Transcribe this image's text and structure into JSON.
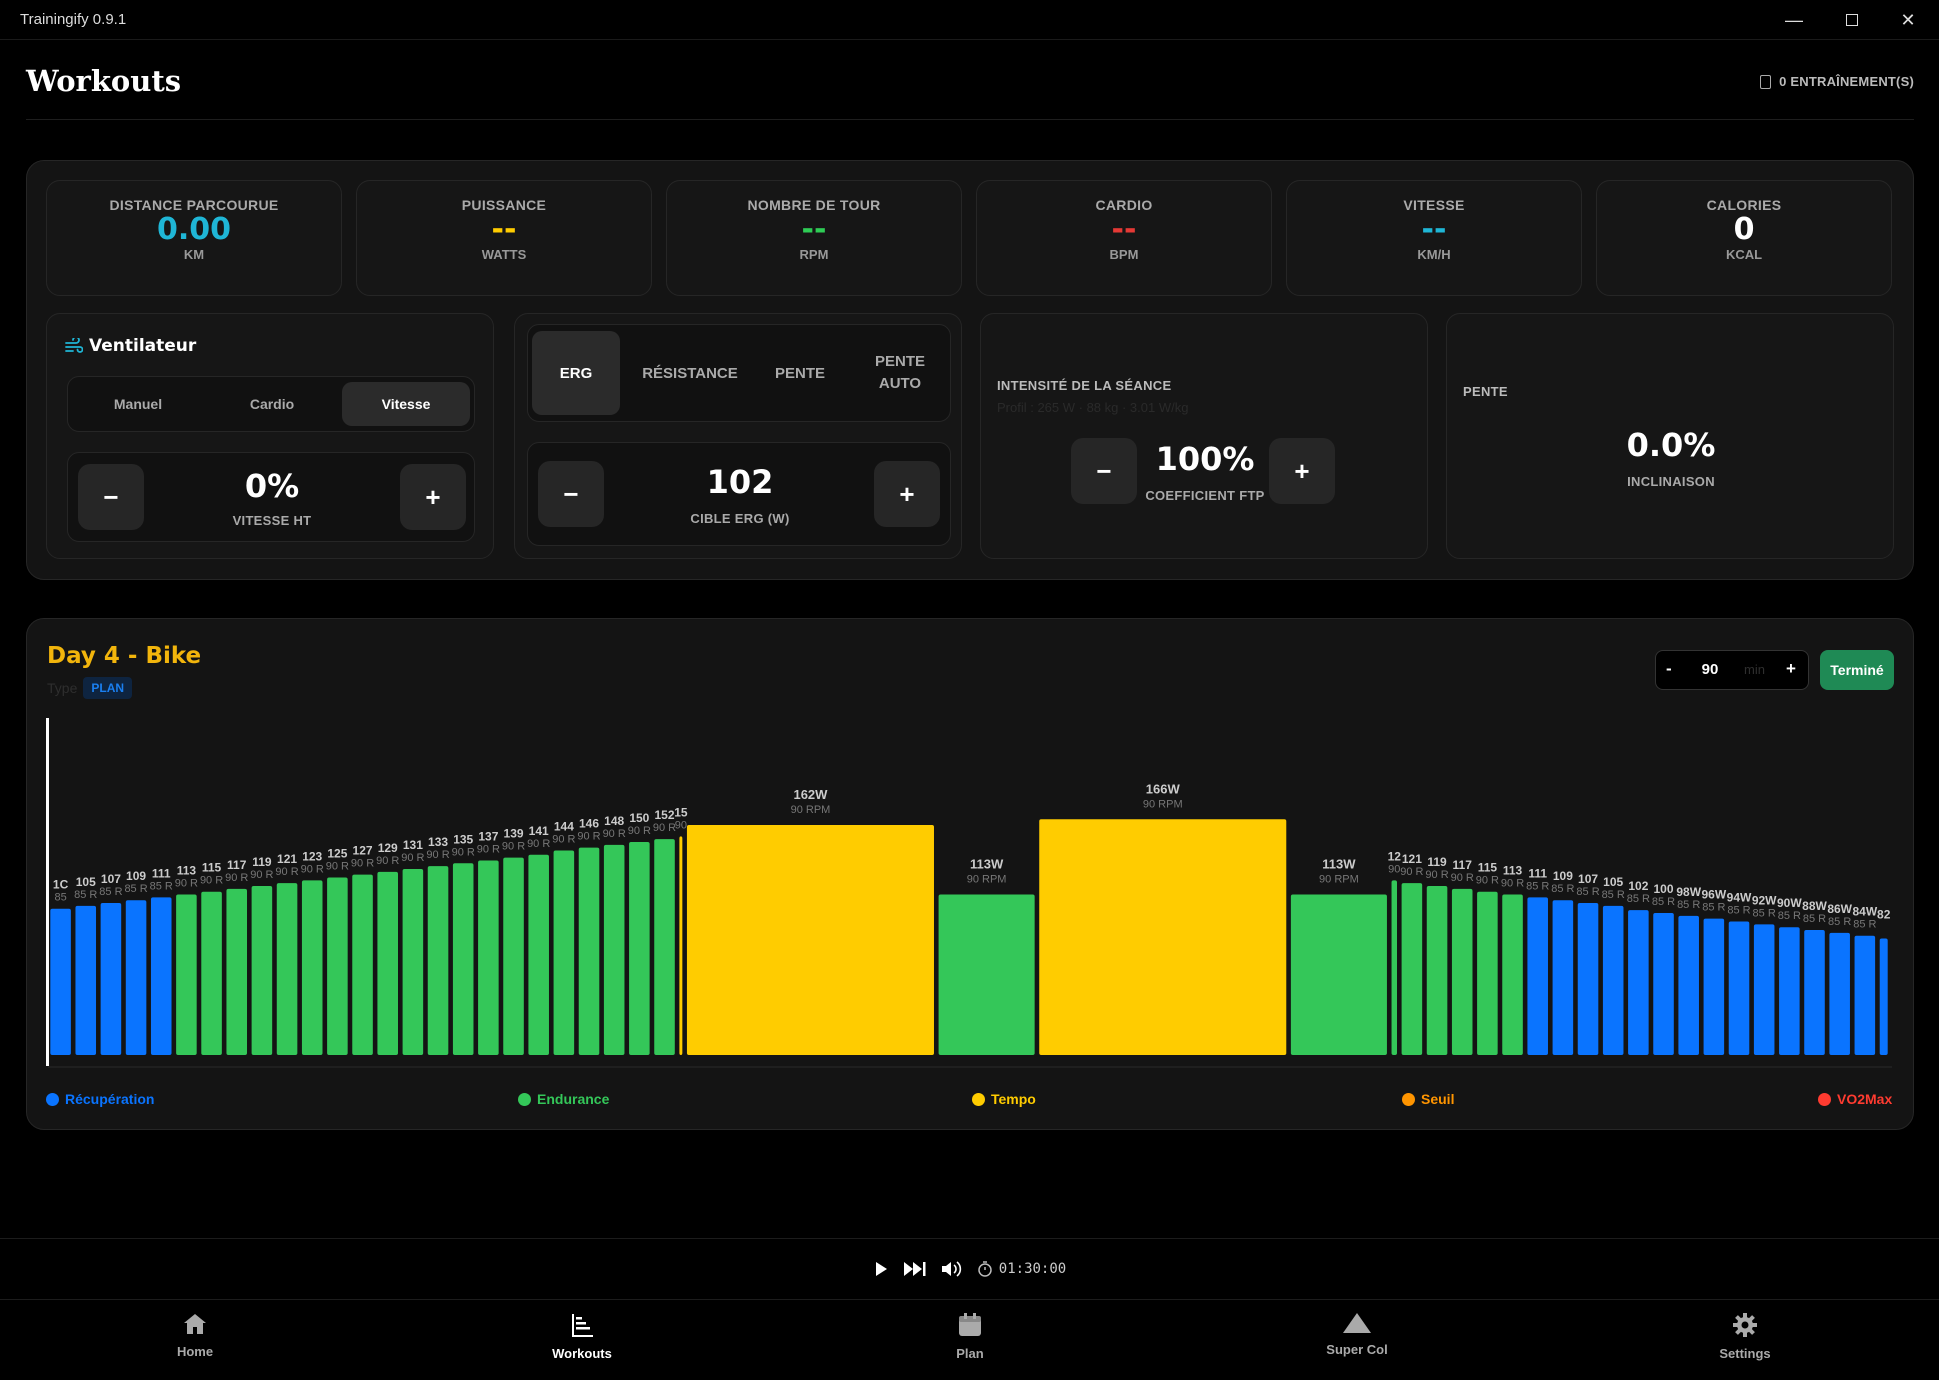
{
  "window": {
    "title": "Trainingify 0.9.1"
  },
  "header": {
    "title": "Workouts",
    "count_label": "0 ENTRAÎNEMENT(S)"
  },
  "metrics": [
    {
      "label": "DISTANCE PARCOURUE",
      "value": "0.00",
      "unit": "KM",
      "color": "#1fb6d6"
    },
    {
      "label": "PUISSANCE",
      "value": "--",
      "unit": "WATTS",
      "color": "#ffcc00"
    },
    {
      "label": "NOMBRE DE TOUR",
      "value": "--",
      "unit": "RPM",
      "color": "#2ecc55"
    },
    {
      "label": "CARDIO",
      "value": "--",
      "unit": "BPM",
      "color": "#e53935"
    },
    {
      "label": "VITESSE",
      "value": "--",
      "unit": "KM/H",
      "color": "#1fb6d6"
    },
    {
      "label": "CALORIES",
      "value": "0",
      "unit": "KCAL",
      "color": "#ffffff"
    }
  ],
  "fan": {
    "title": "Ventilateur",
    "modes": [
      "Manuel",
      "Cardio",
      "Vitesse"
    ],
    "active_mode": "Vitesse",
    "value": "0%",
    "value_label": "VITESSE HT",
    "minus": "−",
    "plus": "+"
  },
  "erg": {
    "modes": [
      "ERG",
      "RÉSISTANCE",
      "PENTE",
      "PENTE AUTO"
    ],
    "active_mode": "ERG",
    "value": "102",
    "value_label": "CIBLE ERG (W)",
    "minus": "−",
    "plus": "+"
  },
  "intensity": {
    "title": "INTENSITÉ DE LA SÉANCE",
    "profile": "Profil : 265 W · 88 kg · 3.01 W/kg",
    "value": "100%",
    "value_label": "COEFFICIENT FTP",
    "minus": "−",
    "plus": "+"
  },
  "slope": {
    "title": "PENTE",
    "value": "0.0%",
    "value_label": "INCLINAISON"
  },
  "workout": {
    "title": "Day 4 - Bike",
    "type_label": "Type",
    "type_badge": "PLAN",
    "duration_value": "90",
    "duration_unit": "min",
    "minus": "-",
    "plus": "+",
    "done_label": "Terminé"
  },
  "chart_data": {
    "type": "bar",
    "description_units": "watts (power target per interval); bar width = interval duration",
    "colors": {
      "recuperation": "#0a74ff",
      "endurance": "#34c759",
      "tempo": "#ffcc00"
    },
    "segments": [
      {
        "w": 1,
        "watts": 103,
        "zone": "recuperation",
        "label": "1C",
        "sub": "85"
      },
      {
        "w": 1,
        "watts": 105,
        "zone": "recuperation",
        "label": "105",
        "sub": "85 R"
      },
      {
        "w": 1,
        "watts": 107,
        "zone": "recuperation",
        "label": "107",
        "sub": "85 R"
      },
      {
        "w": 1,
        "watts": 109,
        "zone": "recuperation",
        "label": "109",
        "sub": "85 R"
      },
      {
        "w": 1,
        "watts": 111,
        "zone": "recuperation",
        "label": "111",
        "sub": "85 R"
      },
      {
        "w": 1,
        "watts": 113,
        "zone": "endurance",
        "label": "113",
        "sub": "90 R"
      },
      {
        "w": 1,
        "watts": 115,
        "zone": "endurance",
        "label": "115",
        "sub": "90 R"
      },
      {
        "w": 1,
        "watts": 117,
        "zone": "endurance",
        "label": "117",
        "sub": "90 R"
      },
      {
        "w": 1,
        "watts": 119,
        "zone": "endurance",
        "label": "119",
        "sub": "90 R"
      },
      {
        "w": 1,
        "watts": 121,
        "zone": "endurance",
        "label": "121",
        "sub": "90 R"
      },
      {
        "w": 1,
        "watts": 123,
        "zone": "endurance",
        "label": "123",
        "sub": "90 R"
      },
      {
        "w": 1,
        "watts": 125,
        "zone": "endurance",
        "label": "125",
        "sub": "90 R"
      },
      {
        "w": 1,
        "watts": 127,
        "zone": "endurance",
        "label": "127",
        "sub": "90 R"
      },
      {
        "w": 1,
        "watts": 129,
        "zone": "endurance",
        "label": "129",
        "sub": "90 R"
      },
      {
        "w": 1,
        "watts": 131,
        "zone": "endurance",
        "label": "131",
        "sub": "90 R"
      },
      {
        "w": 1,
        "watts": 133,
        "zone": "endurance",
        "label": "133",
        "sub": "90 R"
      },
      {
        "w": 1,
        "watts": 135,
        "zone": "endurance",
        "label": "135",
        "sub": "90 R"
      },
      {
        "w": 1,
        "watts": 137,
        "zone": "endurance",
        "label": "137",
        "sub": "90 R"
      },
      {
        "w": 1,
        "watts": 139,
        "zone": "endurance",
        "label": "139",
        "sub": "90 R"
      },
      {
        "w": 1,
        "watts": 141,
        "zone": "endurance",
        "label": "141",
        "sub": "90 R"
      },
      {
        "w": 1,
        "watts": 144,
        "zone": "endurance",
        "label": "144",
        "sub": "90 R"
      },
      {
        "w": 1,
        "watts": 146,
        "zone": "endurance",
        "label": "146",
        "sub": "90 R"
      },
      {
        "w": 1,
        "watts": 148,
        "zone": "endurance",
        "label": "148",
        "sub": "90 R"
      },
      {
        "w": 1,
        "watts": 150,
        "zone": "endurance",
        "label": "150",
        "sub": "90 R"
      },
      {
        "w": 1,
        "watts": 152,
        "zone": "endurance",
        "label": "152",
        "sub": "90 R"
      },
      {
        "w": 0.3,
        "watts": 154,
        "zone": "tempo",
        "label": "15",
        "sub": "90"
      },
      {
        "w": 10,
        "watts": 162,
        "zone": "tempo",
        "label": "162W",
        "sub": "90 RPM"
      },
      {
        "w": 4,
        "watts": 113,
        "zone": "endurance",
        "label": "113W",
        "sub": "90 RPM"
      },
      {
        "w": 10,
        "watts": 166,
        "zone": "tempo",
        "label": "166W",
        "sub": "90 RPM"
      },
      {
        "w": 4,
        "watts": 113,
        "zone": "endurance",
        "label": "113W",
        "sub": "90 RPM"
      },
      {
        "w": 0.4,
        "watts": 123,
        "zone": "endurance",
        "label": "12",
        "sub": "90"
      },
      {
        "w": 1,
        "watts": 121,
        "zone": "endurance",
        "label": "121",
        "sub": "90 R"
      },
      {
        "w": 1,
        "watts": 119,
        "zone": "endurance",
        "label": "119",
        "sub": "90 R"
      },
      {
        "w": 1,
        "watts": 117,
        "zone": "endurance",
        "label": "117",
        "sub": "90 R"
      },
      {
        "w": 1,
        "watts": 115,
        "zone": "endurance",
        "label": "115",
        "sub": "90 R"
      },
      {
        "w": 1,
        "watts": 113,
        "zone": "endurance",
        "label": "113",
        "sub": "90 R"
      },
      {
        "w": 1,
        "watts": 111,
        "zone": "recuperation",
        "label": "111",
        "sub": "85 R"
      },
      {
        "w": 1,
        "watts": 109,
        "zone": "recuperation",
        "label": "109",
        "sub": "85 R"
      },
      {
        "w": 1,
        "watts": 107,
        "zone": "recuperation",
        "label": "107",
        "sub": "85 R"
      },
      {
        "w": 1,
        "watts": 105,
        "zone": "recuperation",
        "label": "105",
        "sub": "85 R"
      },
      {
        "w": 1,
        "watts": 102,
        "zone": "recuperation",
        "label": "102",
        "sub": "85 R"
      },
      {
        "w": 1,
        "watts": 100,
        "zone": "recuperation",
        "label": "100",
        "sub": "85 R"
      },
      {
        "w": 1,
        "watts": 98,
        "zone": "recuperation",
        "label": "98W",
        "sub": "85 R"
      },
      {
        "w": 1,
        "watts": 96,
        "zone": "recuperation",
        "label": "96W",
        "sub": "85 R"
      },
      {
        "w": 1,
        "watts": 94,
        "zone": "recuperation",
        "label": "94W",
        "sub": "85 R"
      },
      {
        "w": 1,
        "watts": 92,
        "zone": "recuperation",
        "label": "92W",
        "sub": "85 R"
      },
      {
        "w": 1,
        "watts": 90,
        "zone": "recuperation",
        "label": "90W",
        "sub": "85 R"
      },
      {
        "w": 1,
        "watts": 88,
        "zone": "recuperation",
        "label": "88W",
        "sub": "85 R"
      },
      {
        "w": 1,
        "watts": 86,
        "zone": "recuperation",
        "label": "86W",
        "sub": "85 R"
      },
      {
        "w": 1,
        "watts": 84,
        "zone": "recuperation",
        "label": "84W",
        "sub": "85 R"
      },
      {
        "w": 0.5,
        "watts": 82,
        "zone": "recuperation",
        "label": "82",
        "sub": ""
      }
    ],
    "legend": [
      {
        "label": "Récupération",
        "color": "#0a74ff"
      },
      {
        "label": "Endurance",
        "color": "#34c759"
      },
      {
        "label": "Tempo",
        "color": "#ffcc00"
      },
      {
        "label": "Seuil",
        "color": "#ff9500"
      },
      {
        "label": "VO2Max",
        "color": "#ff3b30"
      }
    ]
  },
  "transport": {
    "time": "01:30:00"
  },
  "nav": [
    "Home",
    "Workouts",
    "Plan",
    "Super Col",
    "Settings"
  ],
  "nav_active": "Workouts"
}
